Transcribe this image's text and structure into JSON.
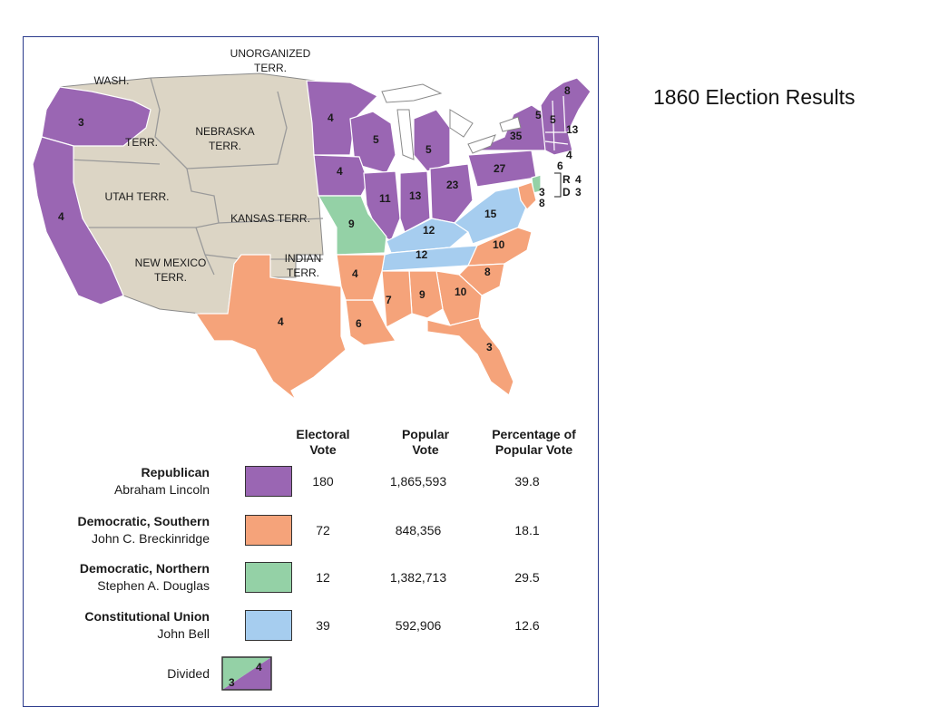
{
  "slide_title": "1860 Election Results",
  "colors": {
    "republican": "#9a66b3",
    "southern_democrat": "#f5a37a",
    "northern_democrat": "#94d1a6",
    "constitutional_union": "#a6cdef",
    "territory": "#dcd5c5",
    "water": "#ffffff",
    "border": "#ffffff"
  },
  "map": {
    "territory_labels": [
      "UNORGANIZED",
      "TERR.",
      "WASH.",
      "TERR.",
      "NEBRASKA",
      "TERR.",
      "UTAH TERR.",
      "KANSAS TERR.",
      "NEW MEXICO",
      "TERR.",
      "INDIAN",
      "TERR."
    ],
    "state_votes": {
      "oregon": "3",
      "california": "4",
      "minnesota": "4",
      "wisconsin": "5",
      "michigan": "5",
      "iowa": "4",
      "illinois": "11",
      "indiana": "13",
      "ohio": "23",
      "pennsylvania": "27",
      "new_york": "35",
      "maine": "8",
      "vermont": "5",
      "new_hampshire": "5",
      "massachusetts": "13",
      "rhode_island": "4",
      "connecticut": "6",
      "missouri": "9",
      "kentucky": "12",
      "tennessee": "12",
      "virginia": "15",
      "north_carolina": "10",
      "south_carolina": "8",
      "georgia": "10",
      "alabama": "9",
      "mississippi": "7",
      "louisiana": "6",
      "arkansas": "4",
      "texas": "4",
      "florida": "3",
      "delaware": "3",
      "maryland": "8"
    },
    "new_jersey_split": {
      "r": "R",
      "r_votes": "4",
      "d": "D",
      "d_votes": "3"
    }
  },
  "table": {
    "headers": {
      "electoral_l1": "Electoral",
      "electoral_l2": "Vote",
      "popular_l1": "Popular",
      "popular_l2": "Vote",
      "percent_l1": "Percentage of",
      "percent_l2": "Popular Vote"
    },
    "rows": [
      {
        "party": "Republican",
        "candidate": "Abraham Lincoln",
        "electoral": "180",
        "popular": "1,865,593",
        "percent": "39.8"
      },
      {
        "party": "Democratic, Southern",
        "candidate": "John C. Breckinridge",
        "electoral": "72",
        "popular": "848,356",
        "percent": "18.1"
      },
      {
        "party": "Democratic, Northern",
        "candidate": "Stephen A. Douglas",
        "electoral": "12",
        "popular": "1,382,713",
        "percent": "29.5"
      },
      {
        "party": "Constitutional Union",
        "candidate": "John Bell",
        "electoral": "39",
        "popular": "592,906",
        "percent": "12.6"
      }
    ],
    "divided": {
      "label": "Divided",
      "northern_votes": "3",
      "republican_votes": "4"
    }
  }
}
